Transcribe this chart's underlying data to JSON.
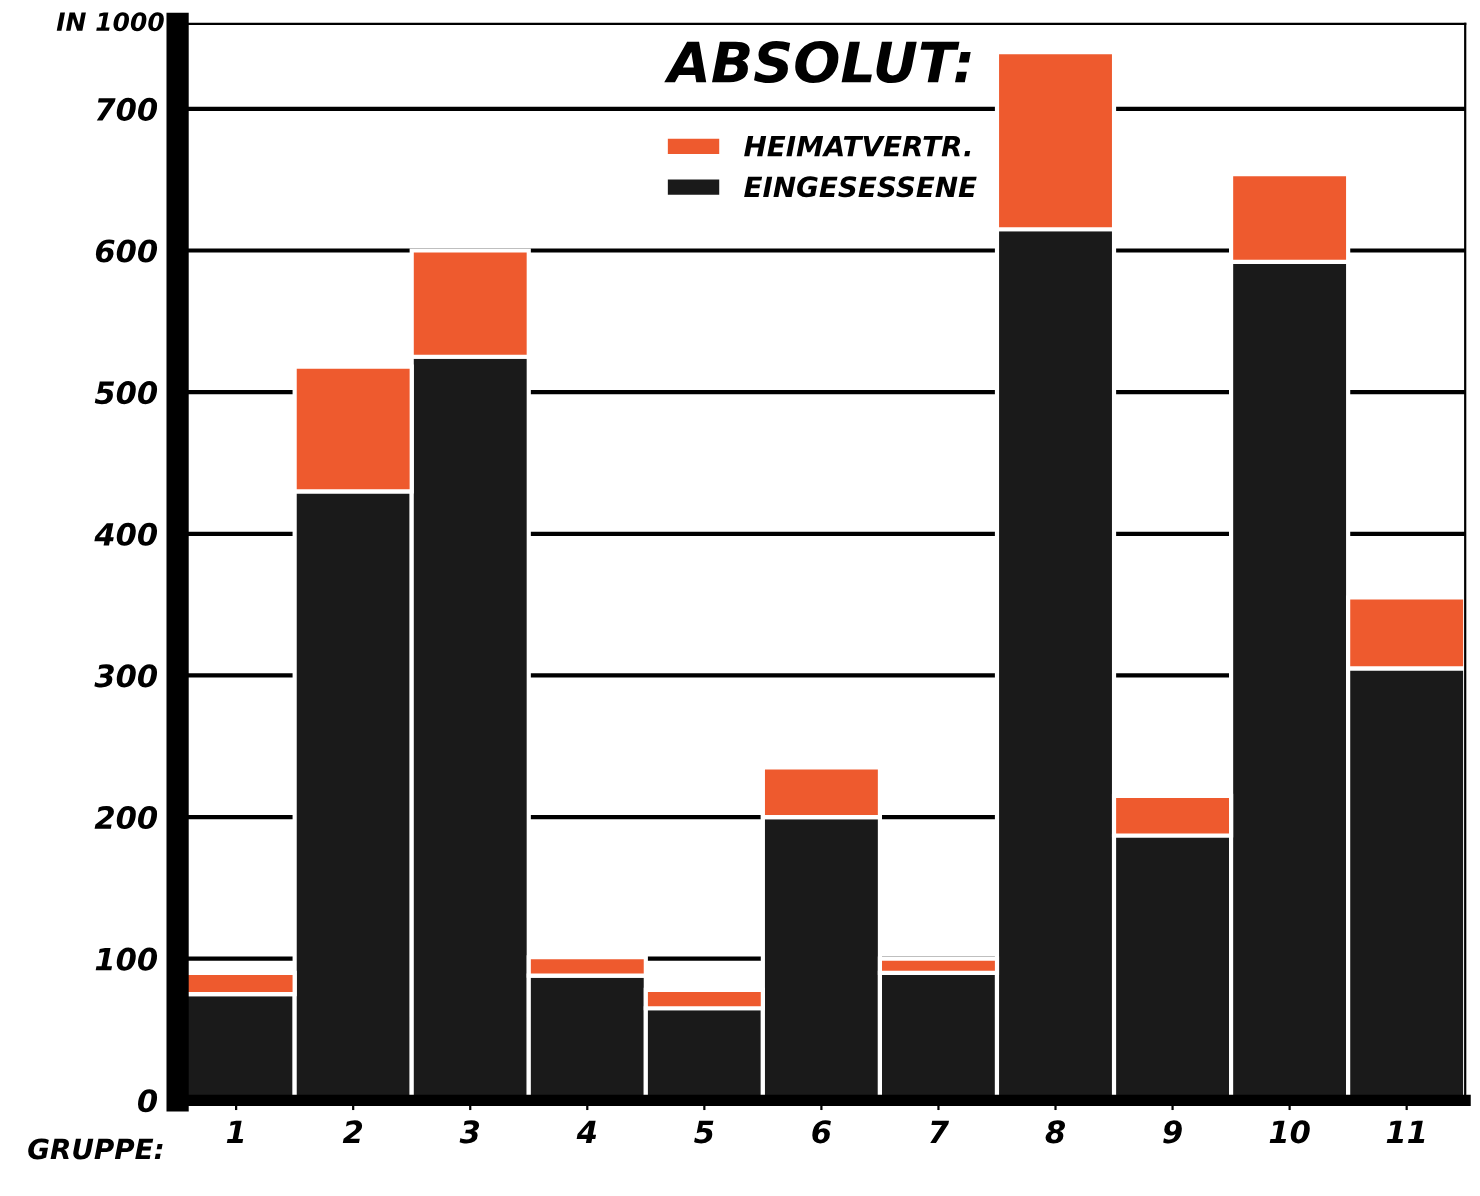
{
  "chart_data": {
    "type": "bar",
    "stacked": true,
    "title": "ABSOLUT:",
    "ylabel": "IN 1000",
    "xlabel": "GRUPPE:",
    "categories": [
      "1",
      "2",
      "3",
      "4",
      "5",
      "6",
      "7",
      "8",
      "9",
      "10",
      "11"
    ],
    "series": [
      {
        "name": "EINGESESSENE",
        "color": "#1a1a1a",
        "values": [
          75,
          430,
          525,
          88,
          65,
          200,
          90,
          615,
          187,
          592,
          305
        ]
      },
      {
        "name": "HEIMATVERTR.",
        "color": "#ee5a2e",
        "values": [
          15,
          88,
          75,
          13,
          13,
          35,
          10,
          125,
          28,
          62,
          50
        ]
      }
    ],
    "ylim": [
      0,
      760
    ],
    "yticks": [
      0,
      100,
      200,
      300,
      400,
      500,
      600,
      700
    ],
    "grid": "y",
    "legend": "top"
  }
}
